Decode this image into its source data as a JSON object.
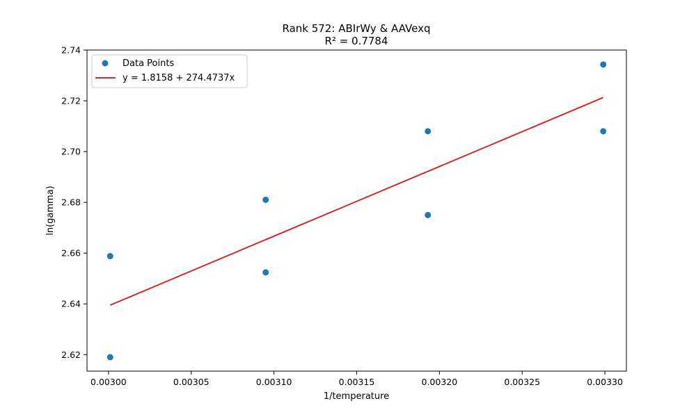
{
  "chart_data": {
    "type": "scatter",
    "title": "Rank 572: ABIrWy & AAVexq",
    "subtitle": "R² = 0.7784",
    "xlabel": "1/temperature",
    "ylabel": "ln(gamma)",
    "xlim": [
      0.002987,
      0.003313
    ],
    "ylim": [
      2.6135,
      2.74
    ],
    "x_ticks": [
      "0.00300",
      "0.00305",
      "0.00310",
      "0.00315",
      "0.00320",
      "0.00325",
      "0.00330"
    ],
    "x_tick_values": [
      0.003,
      0.00305,
      0.0031,
      0.00315,
      0.0032,
      0.00325,
      0.0033
    ],
    "y_ticks": [
      "2.62",
      "2.64",
      "2.66",
      "2.68",
      "2.70",
      "2.72",
      "2.74"
    ],
    "y_tick_values": [
      2.62,
      2.64,
      2.66,
      2.68,
      2.7,
      2.72,
      2.74
    ],
    "grid": false,
    "legend_position": "top-left",
    "series": [
      {
        "name": "Data Points",
        "kind": "scatter",
        "color": "#1f77b4",
        "points": [
          {
            "x": 0.003001,
            "y": 2.6588
          },
          {
            "x": 0.003001,
            "y": 2.619
          },
          {
            "x": 0.003095,
            "y": 2.681
          },
          {
            "x": 0.003095,
            "y": 2.6524
          },
          {
            "x": 0.003193,
            "y": 2.708
          },
          {
            "x": 0.003193,
            "y": 2.675
          },
          {
            "x": 0.003299,
            "y": 2.7343
          },
          {
            "x": 0.003299,
            "y": 2.708
          }
        ]
      },
      {
        "name": "y = 1.8158 + 274.4737x",
        "kind": "line",
        "color": "#d62728",
        "intercept": 1.8158,
        "slope": 274.4737,
        "x_range": [
          0.003001,
          0.003299
        ]
      }
    ]
  }
}
